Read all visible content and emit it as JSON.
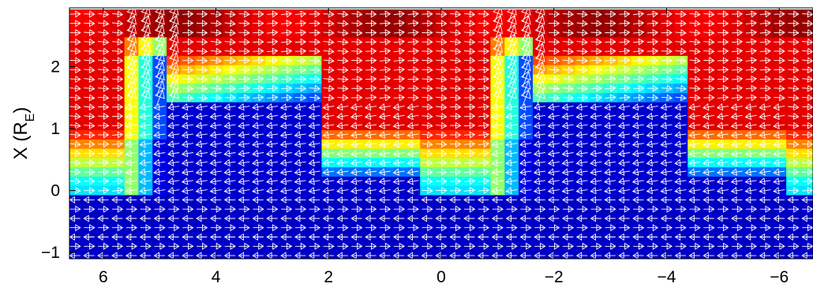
{
  "chart_data": {
    "type": "heatmap",
    "title": "",
    "xlabel": "",
    "ylabel": {
      "base": "X (R",
      "subscript": "E",
      "closing": ")"
    },
    "xlim": [
      6.6,
      -6.6
    ],
    "ylim": [
      -1.1,
      2.95
    ],
    "x_reversed": true,
    "x_ticks": [
      6,
      4,
      2,
      0,
      -2,
      -4,
      -6
    ],
    "x_tick_labels": [
      "6",
      "4",
      "2",
      "0",
      "−2",
      "−4",
      "−6"
    ],
    "y_ticks": [
      2,
      1,
      0,
      -1
    ],
    "y_tick_labels": [
      "2",
      "1",
      "0",
      "−1"
    ],
    "grid": false,
    "colormap": "jet",
    "colormap_stops": [
      "#00008f",
      "#0000ff",
      "#0080ff",
      "#00ffff",
      "#80ff80",
      "#ffff00",
      "#ff8000",
      "#ff0000",
      "#800000"
    ],
    "vector_overlay": {
      "glyph": "open-arrowhead",
      "color": "#ffffff",
      "description_of_flow": "rightward (+) along top and bottom rows, leftward (-) in the blue interior band"
    },
    "grid_columns": [
      6.5,
      6.25,
      6.0,
      5.75,
      5.5,
      5.25,
      5.0,
      4.75,
      4.5,
      4.25,
      4.0,
      3.75,
      3.5,
      3.25,
      3.0,
      2.75,
      2.5,
      2.25,
      2.0,
      1.75,
      1.5,
      1.25,
      1.0,
      0.75,
      0.5,
      0.25,
      0.0,
      -0.25,
      -0.5,
      -0.75,
      -1.0,
      -1.25,
      -1.5,
      -1.75,
      -2.0,
      -2.25,
      -2.5,
      -2.75,
      -3.0,
      -3.25,
      -3.5,
      -3.75,
      -4.0,
      -4.25,
      -4.5,
      -4.75,
      -5.0,
      -5.25,
      -5.5,
      -5.75,
      -6.0,
      -6.25,
      -6.5
    ],
    "grid_rows": [
      2.85,
      2.7,
      2.55,
      2.4,
      2.25,
      2.1,
      1.95,
      1.8,
      1.65,
      1.5,
      1.35,
      1.2,
      1.05,
      0.9,
      0.75,
      0.6,
      0.45,
      0.3,
      0.15,
      0.0,
      -0.15,
      -0.3,
      -0.45,
      -0.6,
      -0.75,
      -0.9,
      -1.05
    ],
    "field_model": {
      "period_x": 6.5,
      "structure": [
        {
          "region": "upper layer",
          "y_min": 1.5,
          "level": 0.9
        },
        {
          "region": "transition wall",
          "x_from": 5.2,
          "x_to": 4.6,
          "level": 0.45
        },
        {
          "region": "inner cavity",
          "x_from": 4.6,
          "x_to": 2.0,
          "y_max": 1.45,
          "level": 0.08
        },
        {
          "region": "gradient shelf",
          "x_from": 2.0,
          "x_to": -0.5,
          "y_from": 0.2,
          "y_to": 1.1
        },
        {
          "region": "lower layer",
          "y_max": 0.0,
          "level": 0.08
        }
      ]
    }
  }
}
